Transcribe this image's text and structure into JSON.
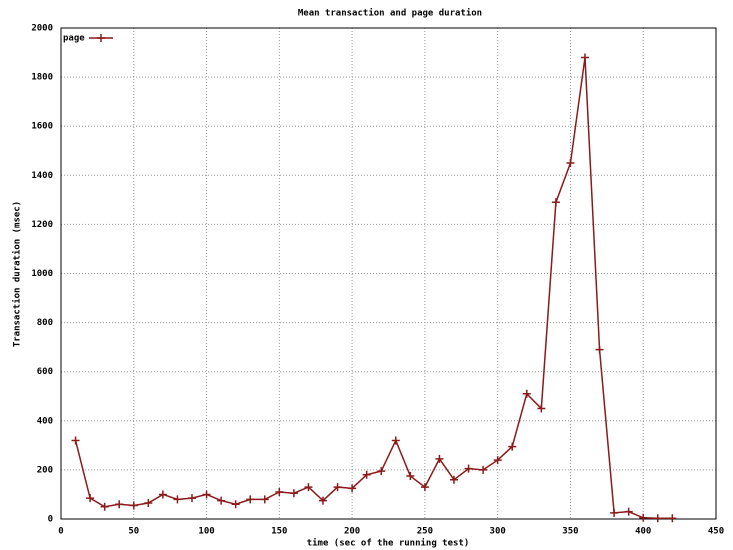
{
  "chart_data": {
    "type": "line",
    "title": "Mean transaction and page duration",
    "x_label": "time (sec of the running test)",
    "y_label": "Transaction duration (msec)",
    "x": [
      10,
      20,
      30,
      40,
      50,
      60,
      70,
      80,
      90,
      100,
      110,
      120,
      130,
      140,
      150,
      160,
      170,
      180,
      190,
      200,
      210,
      220,
      230,
      240,
      250,
      260,
      270,
      280,
      290,
      300,
      310,
      320,
      330,
      340,
      350,
      360,
      370,
      380,
      390,
      400,
      410,
      420
    ],
    "series": [
      {
        "name": "page",
        "color": "#8b1a1a",
        "values": [
          320,
          85,
          50,
          60,
          55,
          65,
          100,
          80,
          85,
          100,
          75,
          60,
          80,
          80,
          110,
          105,
          130,
          75,
          130,
          125,
          180,
          195,
          320,
          175,
          130,
          245,
          160,
          205,
          200,
          240,
          295,
          510,
          450,
          1290,
          1450,
          1880,
          690,
          25,
          30,
          5,
          3,
          3
        ]
      }
    ],
    "xlim": [
      0,
      450
    ],
    "xticks": [
      0,
      50,
      100,
      150,
      200,
      250,
      300,
      350,
      400,
      450
    ],
    "ylim": [
      0,
      2000
    ],
    "yticks": [
      0,
      200,
      400,
      600,
      800,
      1000,
      1200,
      1400,
      1600,
      1800,
      2000
    ],
    "grid": true,
    "legend": "top-left"
  }
}
